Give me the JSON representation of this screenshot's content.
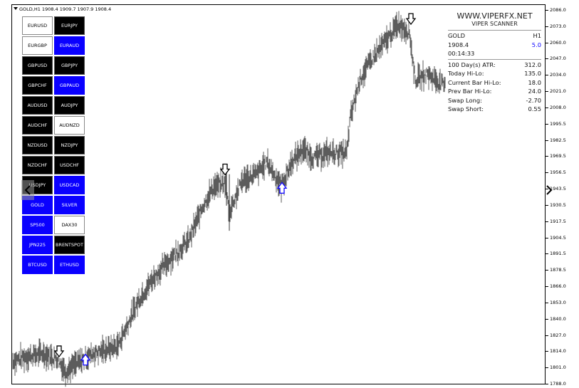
{
  "header": {
    "text": "GOLD,H1  1908.4 1909.7 1907.9 1908.4"
  },
  "axis_labels": [
    "2086.0",
    "2073.0",
    "2060.0",
    "2047.0",
    "2034.0",
    "2021.0",
    "2008.0",
    "1995.5",
    "1982.5",
    "1969.5",
    "1956.5",
    "1943.5",
    "1930.5",
    "1917.5",
    "1904.5",
    "1891.5",
    "1878.5",
    "1866.0",
    "1853.0",
    "1840.0",
    "1827.0",
    "1814.0",
    "1801.0",
    "1788.0"
  ],
  "symbols": [
    {
      "label": "EURUSD",
      "style": "white"
    },
    {
      "label": "EURJPY",
      "style": "black"
    },
    {
      "label": "EURGBP",
      "style": "white"
    },
    {
      "label": "EURAUD",
      "style": "blue"
    },
    {
      "label": "GBPUSD",
      "style": "black"
    },
    {
      "label": "GBPJPY",
      "style": "black"
    },
    {
      "label": "GBPCHF",
      "style": "black"
    },
    {
      "label": "GBPAUD",
      "style": "blue"
    },
    {
      "label": "AUDUSD",
      "style": "black"
    },
    {
      "label": "AUDJPY",
      "style": "black"
    },
    {
      "label": "AUDCHF",
      "style": "black"
    },
    {
      "label": "AUDNZD",
      "style": "white"
    },
    {
      "label": "NZDUSD",
      "style": "black"
    },
    {
      "label": "NZDJPY",
      "style": "black"
    },
    {
      "label": "NZDCHF",
      "style": "black"
    },
    {
      "label": "USDCHF",
      "style": "black"
    },
    {
      "label": "USDJPY",
      "style": "black"
    },
    {
      "label": "USDCAD",
      "style": "blue"
    },
    {
      "label": "GOLD",
      "style": "blue"
    },
    {
      "label": "SILVER",
      "style": "blue"
    },
    {
      "label": "SP500",
      "style": "blue"
    },
    {
      "label": "DAX30",
      "style": "white"
    },
    {
      "label": "JPN225",
      "style": "blue"
    },
    {
      "label": "BRENTSPOT",
      "style": "black"
    },
    {
      "label": "BTCUSD",
      "style": "blue"
    },
    {
      "label": "ETHUSD",
      "style": "blue"
    }
  ],
  "panel": {
    "brand": "WWW.VIPERFX.NET",
    "subtitle": "VIPER SCANNER",
    "symbol": "GOLD",
    "timeframe": "H1",
    "price": "1908.4",
    "spread": "5.0",
    "timer": "00:14:33",
    "stats": [
      {
        "label": "100 Day(s) ATR:",
        "value": "312.0"
      },
      {
        "label": "Today Hi-Lo:",
        "value": "135.0"
      },
      {
        "label": "Current Bar Hi-Lo:",
        "value": "18.0"
      },
      {
        "label": "Prev Bar Hi-Lo:",
        "value": "24.0"
      },
      {
        "label": "Swap Long:",
        "value": "-2.70"
      },
      {
        "label": "Swap Short:",
        "value": "0.55"
      }
    ]
  },
  "signals": [
    {
      "type": "sell",
      "price": 1813
    },
    {
      "type": "buy",
      "price": 1808
    },
    {
      "type": "sell",
      "price": 1958
    },
    {
      "type": "buy",
      "price": 1945
    },
    {
      "type": "sell",
      "price": 2078
    }
  ],
  "colors": {
    "buy": "#0a00ff",
    "sell": "#000000",
    "candles": "#333333"
  },
  "icons": {
    "left": "chevron-left-icon",
    "right": "chevron-right-icon"
  }
}
